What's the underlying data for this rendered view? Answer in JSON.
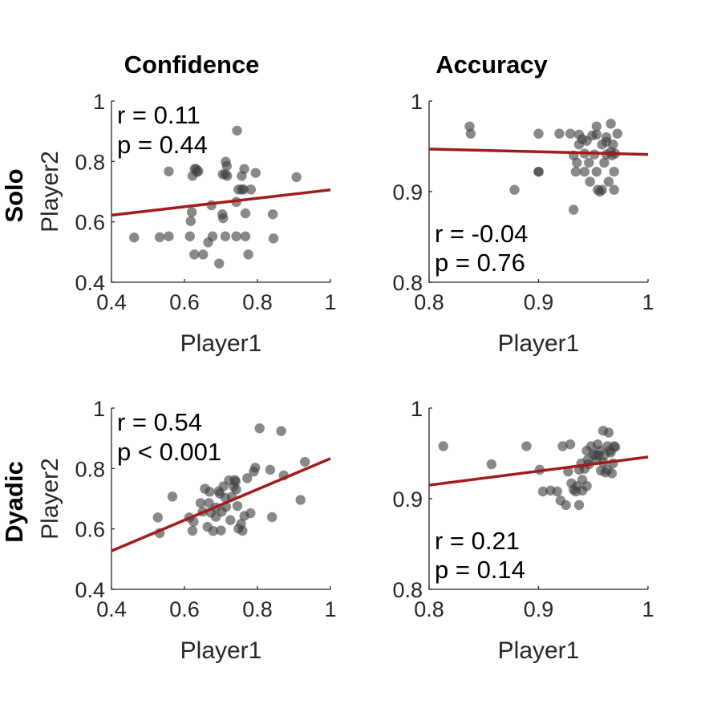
{
  "columns": [
    "Confidence",
    "Accuracy"
  ],
  "rows": [
    "Solo",
    "Dyadic"
  ],
  "regression_color": "#a31b1b",
  "point_color": "#404040",
  "chart_data": [
    {
      "type": "scatter",
      "id": "solo-confidence",
      "xlabel": "Player1",
      "ylabel": "Player2",
      "xlim": [
        0.4,
        1
      ],
      "ylim": [
        0.4,
        1
      ],
      "xticks": [
        "0.4",
        "0.6",
        "0.8",
        "1"
      ],
      "yticks": [
        "0.4",
        "0.6",
        "0.8",
        "1"
      ],
      "stats": {
        "r": "r = 0.11",
        "p": "p = 0.44",
        "position": "top-left"
      },
      "fit": {
        "x": [
          0.4,
          1
        ],
        "y": [
          0.622,
          0.706
        ]
      },
      "points": [
        [
          0.462,
          0.548
        ],
        [
          0.532,
          0.549
        ],
        [
          0.557,
          0.552
        ],
        [
          0.557,
          0.767
        ],
        [
          0.615,
          0.552
        ],
        [
          0.617,
          0.602
        ],
        [
          0.62,
          0.632
        ],
        [
          0.622,
          0.752
        ],
        [
          0.628,
          0.775
        ],
        [
          0.632,
          0.775
        ],
        [
          0.634,
          0.765
        ],
        [
          0.638,
          0.768
        ],
        [
          0.627,
          0.492
        ],
        [
          0.651,
          0.492
        ],
        [
          0.665,
          0.532
        ],
        [
          0.677,
          0.552
        ],
        [
          0.674,
          0.655
        ],
        [
          0.695,
          0.462
        ],
        [
          0.704,
          0.625
        ],
        [
          0.706,
          0.612
        ],
        [
          0.712,
          0.552
        ],
        [
          0.705,
          0.757
        ],
        [
          0.712,
          0.758
        ],
        [
          0.717,
          0.752
        ],
        [
          0.713,
          0.799
        ],
        [
          0.716,
          0.785
        ],
        [
          0.742,
          0.552
        ],
        [
          0.742,
          0.666
        ],
        [
          0.744,
          0.902
        ],
        [
          0.748,
          0.707
        ],
        [
          0.757,
          0.707
        ],
        [
          0.762,
          0.707
        ],
        [
          0.757,
          0.752
        ],
        [
          0.764,
          0.775
        ],
        [
          0.767,
          0.552
        ],
        [
          0.767,
          0.628
        ],
        [
          0.775,
          0.492
        ],
        [
          0.782,
          0.707
        ],
        [
          0.795,
          0.762
        ],
        [
          0.842,
          0.625
        ],
        [
          0.844,
          0.545
        ],
        [
          0.907,
          0.748
        ]
      ]
    },
    {
      "type": "scatter",
      "id": "solo-accuracy",
      "xlabel": "Player1",
      "ylabel": "",
      "xlim": [
        0.8,
        1
      ],
      "ylim": [
        0.8,
        1
      ],
      "xticks": [
        "0.8",
        "0.9",
        "1"
      ],
      "yticks": [
        "0.8",
        "0.9",
        "1"
      ],
      "stats": {
        "r": "r = -0.04",
        "p": "p = 0.76",
        "position": "bottom-left"
      },
      "fit": {
        "x": [
          0.8,
          1
        ],
        "y": [
          0.947,
          0.941
        ]
      },
      "points": [
        [
          0.837,
          0.972
        ],
        [
          0.838,
          0.964
        ],
        [
          0.878,
          0.902
        ],
        [
          0.9,
          0.964
        ],
        [
          0.9,
          0.922
        ],
        [
          0.9,
          0.922
        ],
        [
          0.919,
          0.964
        ],
        [
          0.929,
          0.964
        ],
        [
          0.932,
          0.88
        ],
        [
          0.932,
          0.94
        ],
        [
          0.934,
          0.922
        ],
        [
          0.935,
          0.932
        ],
        [
          0.937,
          0.952
        ],
        [
          0.937,
          0.963
        ],
        [
          0.94,
          0.958
        ],
        [
          0.942,
          0.922
        ],
        [
          0.942,
          0.942
        ],
        [
          0.944,
          0.956
        ],
        [
          0.946,
          0.932
        ],
        [
          0.947,
          0.911
        ],
        [
          0.949,
          0.962
        ],
        [
          0.951,
          0.941
        ],
        [
          0.953,
          0.972
        ],
        [
          0.953,
          0.963
        ],
        [
          0.953,
          0.922
        ],
        [
          0.954,
          0.902
        ],
        [
          0.956,
          0.9
        ],
        [
          0.958,
          0.952
        ],
        [
          0.958,
          0.902
        ],
        [
          0.96,
          0.932
        ],
        [
          0.962,
          0.96
        ],
        [
          0.962,
          0.955
        ],
        [
          0.962,
          0.941
        ],
        [
          0.964,
          0.911
        ],
        [
          0.966,
          0.975
        ],
        [
          0.966,
          0.944
        ],
        [
          0.967,
          0.94
        ],
        [
          0.968,
          0.952
        ],
        [
          0.969,
          0.922
        ],
        [
          0.969,
          0.902
        ],
        [
          0.972,
          0.964
        ],
        [
          0.97,
          0.942
        ]
      ]
    },
    {
      "type": "scatter",
      "id": "dyadic-confidence",
      "xlabel": "Player1",
      "ylabel": "Player2",
      "xlim": [
        0.4,
        1
      ],
      "ylim": [
        0.4,
        1
      ],
      "xticks": [
        "0.4",
        "0.6",
        "0.8",
        "1"
      ],
      "yticks": [
        "0.4",
        "0.6",
        "0.8",
        "1"
      ],
      "stats": {
        "r": "r = 0.54",
        "p": "p < 0.001",
        "position": "top-left"
      },
      "fit": {
        "x": [
          0.4,
          1
        ],
        "y": [
          0.527,
          0.833
        ]
      },
      "points": [
        [
          0.527,
          0.638
        ],
        [
          0.532,
          0.586
        ],
        [
          0.567,
          0.707
        ],
        [
          0.613,
          0.638
        ],
        [
          0.622,
          0.594
        ],
        [
          0.625,
          0.624
        ],
        [
          0.644,
          0.686
        ],
        [
          0.65,
          0.657
        ],
        [
          0.656,
          0.733
        ],
        [
          0.663,
          0.607
        ],
        [
          0.667,
          0.686
        ],
        [
          0.669,
          0.723
        ],
        [
          0.672,
          0.654
        ],
        [
          0.679,
          0.593
        ],
        [
          0.686,
          0.671
        ],
        [
          0.686,
          0.64
        ],
        [
          0.694,
          0.725
        ],
        [
          0.697,
          0.717
        ],
        [
          0.7,
          0.595
        ],
        [
          0.702,
          0.657
        ],
        [
          0.707,
          0.741
        ],
        [
          0.712,
          0.703
        ],
        [
          0.714,
          0.673
        ],
        [
          0.722,
          0.761
        ],
        [
          0.726,
          0.629
        ],
        [
          0.73,
          0.707
        ],
        [
          0.735,
          0.74
        ],
        [
          0.738,
          0.762
        ],
        [
          0.74,
          0.757
        ],
        [
          0.742,
          0.731
        ],
        [
          0.745,
          0.676
        ],
        [
          0.748,
          0.601
        ],
        [
          0.755,
          0.617
        ],
        [
          0.759,
          0.594
        ],
        [
          0.764,
          0.643
        ],
        [
          0.772,
          0.768
        ],
        [
          0.781,
          0.652
        ],
        [
          0.79,
          0.79
        ],
        [
          0.794,
          0.803
        ],
        [
          0.806,
          0.933
        ],
        [
          0.835,
          0.796
        ],
        [
          0.84,
          0.639
        ],
        [
          0.865,
          0.924
        ],
        [
          0.872,
          0.777
        ],
        [
          0.918,
          0.696
        ],
        [
          0.93,
          0.822
        ]
      ]
    },
    {
      "type": "scatter",
      "id": "dyadic-accuracy",
      "xlabel": "Player1",
      "ylabel": "",
      "xlim": [
        0.8,
        1
      ],
      "ylim": [
        0.8,
        1
      ],
      "xticks": [
        "0.8",
        "0.9",
        "1"
      ],
      "yticks": [
        "0.8",
        "0.9",
        "1"
      ],
      "stats": {
        "r": "r = 0.21",
        "p": "p = 0.14",
        "position": "bottom-left"
      },
      "fit": {
        "x": [
          0.8,
          1
        ],
        "y": [
          0.915,
          0.946
        ]
      },
      "points": [
        [
          0.813,
          0.958
        ],
        [
          0.857,
          0.938
        ],
        [
          0.889,
          0.958
        ],
        [
          0.901,
          0.932
        ],
        [
          0.904,
          0.908
        ],
        [
          0.911,
          0.909
        ],
        [
          0.917,
          0.908
        ],
        [
          0.92,
          0.898
        ],
        [
          0.922,
          0.958
        ],
        [
          0.925,
          0.893
        ],
        [
          0.927,
          0.93
        ],
        [
          0.929,
          0.96
        ],
        [
          0.93,
          0.917
        ],
        [
          0.932,
          0.91
        ],
        [
          0.934,
          0.908
        ],
        [
          0.935,
          0.914
        ],
        [
          0.937,
          0.932
        ],
        [
          0.937,
          0.893
        ],
        [
          0.939,
          0.939
        ],
        [
          0.94,
          0.921
        ],
        [
          0.94,
          0.909
        ],
        [
          0.942,
          0.933
        ],
        [
          0.944,
          0.953
        ],
        [
          0.944,
          0.914
        ],
        [
          0.945,
          0.943
        ],
        [
          0.946,
          0.938
        ],
        [
          0.948,
          0.958
        ],
        [
          0.95,
          0.949
        ],
        [
          0.952,
          0.948
        ],
        [
          0.953,
          0.943
        ],
        [
          0.954,
          0.96
        ],
        [
          0.955,
          0.948
        ],
        [
          0.956,
          0.953
        ],
        [
          0.957,
          0.931
        ],
        [
          0.959,
          0.975
        ],
        [
          0.959,
          0.94
        ],
        [
          0.96,
          0.948
        ],
        [
          0.961,
          0.929
        ],
        [
          0.963,
          0.958
        ],
        [
          0.963,
          0.932
        ],
        [
          0.964,
          0.973
        ],
        [
          0.965,
          0.953
        ],
        [
          0.966,
          0.951
        ],
        [
          0.967,
          0.928
        ],
        [
          0.968,
          0.939
        ],
        [
          0.969,
          0.958
        ],
        [
          0.97,
          0.957
        ]
      ]
    }
  ]
}
